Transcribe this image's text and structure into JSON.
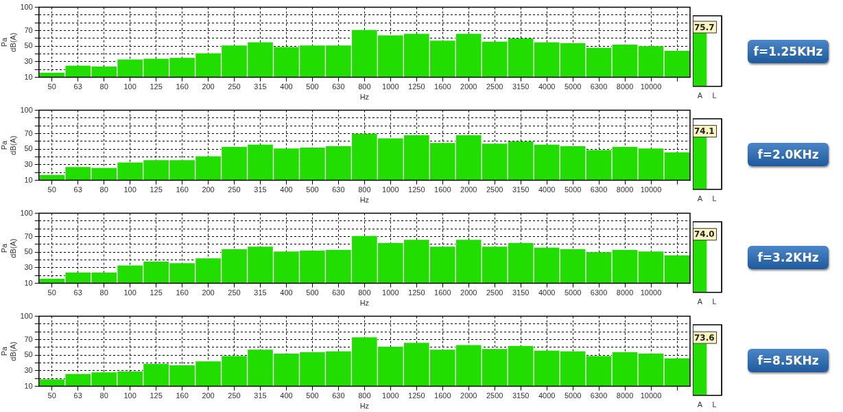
{
  "chart_data": [
    {
      "type": "bar",
      "xlabel": "Hz",
      "ylabel": "Pa\ndB(A)",
      "categories": [
        "50",
        "63",
        "80",
        "100",
        "125",
        "160",
        "200",
        "250",
        "315",
        "400",
        "500",
        "630",
        "800",
        "1000",
        "1250",
        "1600",
        "2000",
        "2500",
        "3150",
        "4000",
        "5000",
        "6300",
        "8000",
        "10000",
        null
      ],
      "color": "#22dd00",
      "values": [
        16,
        25,
        24,
        33,
        34,
        35,
        41,
        51,
        55,
        49,
        51,
        51,
        71,
        64,
        66,
        57,
        66,
        56,
        60,
        55,
        54,
        48,
        52,
        50,
        44
      ],
      "ylim": [
        10,
        100
      ],
      "yticks": [
        10,
        {
          "value": 20,
          "label": null
        },
        30,
        {
          "value": 40,
          "label": null
        },
        50,
        {
          "value": 60,
          "label": null
        },
        70,
        {
          "value": 80,
          "label": null
        },
        {
          "value": 90,
          "label": null
        },
        100
      ],
      "grid": true
    },
    {
      "type": "bar",
      "categories": [
        "A",
        "L"
      ],
      "color": "#22dd00",
      "values": [
        75.7,
        null
      ],
      "value_labels": [
        "75.7",
        null
      ],
      "ylim": [
        0,
        100
      ],
      "tick_labels": "x",
      "annotations": [
        "f=1.25KHz"
      ]
    },
    {
      "type": "bar",
      "xlabel": "Hz",
      "ylabel": "Pa\ndB(A)",
      "categories": [
        "50",
        "63",
        "80",
        "100",
        "125",
        "160",
        "200",
        "250",
        "315",
        "400",
        "500",
        "630",
        "800",
        "1000",
        "1250",
        "1600",
        "2000",
        "2500",
        "3150",
        "4000",
        "5000",
        "6300",
        "8000",
        "10000",
        null
      ],
      "color": "#22dd00",
      "values": [
        17,
        27,
        26,
        33,
        36,
        36,
        41,
        53,
        56,
        51,
        52,
        54,
        70,
        64,
        68,
        58,
        68,
        57,
        60,
        56,
        54,
        49,
        53,
        51,
        46
      ],
      "ylim": [
        10,
        100
      ],
      "yticks": [
        10,
        {
          "value": 20,
          "label": null
        },
        30,
        {
          "value": 40,
          "label": null
        },
        50,
        {
          "value": 60,
          "label": null
        },
        70,
        {
          "value": 80,
          "label": null
        },
        {
          "value": 90,
          "label": null
        },
        100
      ],
      "grid": true
    },
    {
      "type": "bar",
      "categories": [
        "A",
        "L"
      ],
      "color": "#22dd00",
      "values": [
        74.1,
        null
      ],
      "value_labels": [
        "74.1",
        null
      ],
      "ylim": [
        0,
        100
      ],
      "tick_labels": "x",
      "annotations": [
        "f=2.0KHz"
      ]
    },
    {
      "type": "bar",
      "xlabel": "Hz",
      "ylabel": "Pa\ndB(A)",
      "categories": [
        "50",
        "63",
        "80",
        "100",
        "125",
        "160",
        "200",
        "250",
        "315",
        "400",
        "500",
        "630",
        "800",
        "1000",
        "1250",
        "1600",
        "2000",
        "2500",
        "3150",
        "4000",
        "5000",
        "6300",
        "8000",
        "10000",
        null
      ],
      "color": "#22dd00",
      "values": [
        16,
        24,
        24,
        33,
        38,
        36,
        42,
        54,
        57,
        51,
        52,
        53,
        71,
        62,
        66,
        57,
        66,
        57,
        62,
        56,
        54,
        50,
        53,
        51,
        46
      ],
      "ylim": [
        10,
        100
      ],
      "yticks": [
        10,
        {
          "value": 20,
          "label": null
        },
        30,
        {
          "value": 40,
          "label": null
        },
        50,
        {
          "value": 60,
          "label": null
        },
        70,
        {
          "value": 80,
          "label": null
        },
        {
          "value": 90,
          "label": null
        },
        100
      ],
      "grid": true
    },
    {
      "type": "bar",
      "categories": [
        "A",
        "L"
      ],
      "color": "#22dd00",
      "values": [
        74.0,
        null
      ],
      "value_labels": [
        "74.0",
        null
      ],
      "ylim": [
        0,
        100
      ],
      "tick_labels": "x",
      "annotations": [
        "f=3.2KHz"
      ]
    },
    {
      "type": "bar",
      "xlabel": "Hz",
      "ylabel": "Pa\ndB(A)",
      "categories": [
        "50",
        "63",
        "80",
        "100",
        "125",
        "160",
        "200",
        "250",
        "315",
        "400",
        "500",
        "630",
        "800",
        "1000",
        "1250",
        "1600",
        "2000",
        "2500",
        "3150",
        "4000",
        "5000",
        "6300",
        "8000",
        "10000",
        null
      ],
      "color": "#22dd00",
      "values": [
        19,
        26,
        28,
        29,
        39,
        37,
        42,
        49,
        57,
        52,
        54,
        55,
        73,
        61,
        66,
        57,
        63,
        58,
        62,
        56,
        55,
        49,
        54,
        52,
        46
      ],
      "ylim": [
        10,
        100
      ],
      "yticks": [
        10,
        {
          "value": 20,
          "label": null
        },
        30,
        {
          "value": 40,
          "label": null
        },
        50,
        {
          "value": 60,
          "label": null
        },
        70,
        {
          "value": 80,
          "label": null
        },
        {
          "value": 90,
          "label": null
        },
        100
      ],
      "grid": true
    },
    {
      "type": "bar",
      "categories": [
        "A",
        "L"
      ],
      "color": "#22dd00",
      "values": [
        73.6,
        null
      ],
      "value_labels": [
        "73.6",
        null
      ],
      "ylim": [
        0,
        100
      ],
      "tick_labels": "x",
      "annotations": [
        "f=8.5KHz"
      ]
    }
  ]
}
